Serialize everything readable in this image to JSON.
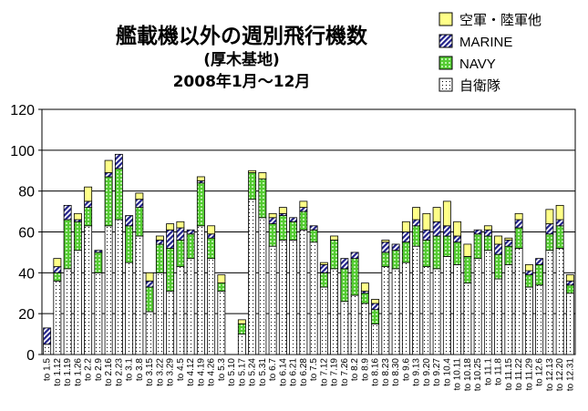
{
  "chart_data": {
    "type": "bar",
    "stacked": true,
    "title": "艦載機以外の週別飛行機数",
    "subtitle_lines": [
      "(厚木基地)",
      "2008年1月～12月"
    ],
    "ylim": [
      0,
      120
    ],
    "yticks": [
      0,
      20,
      40,
      60,
      80,
      100,
      120
    ],
    "grid": true,
    "legend_position": "top-right",
    "categories": [
      "to 1.5",
      "to 1.12",
      "to 1.19",
      "to 1.26",
      "to 2.2",
      "to 2.9",
      "to 2.16",
      "to 2.23",
      "to 3.1",
      "to 3.8",
      "to 3.15",
      "to 3.22",
      "to 3.29",
      "to 4.5",
      "to 4.12",
      "to 4.19",
      "to 4.26",
      "to 5.3",
      "to 5.10",
      "to 5.17",
      "to 5.24",
      "to 5.31",
      "to 6.7",
      "to 6.14",
      "to 6.21",
      "to 6.28",
      "to 7.5",
      "to 7.12",
      "to 7.19",
      "to 7.26",
      "to 8.2",
      "to 8.9",
      "to 8.16",
      "to 8.23",
      "to 8.30",
      "to 9.6",
      "to 9.13",
      "to 9.20",
      "to 9.27",
      "to 10.4",
      "to 10.11",
      "to 10.18",
      "to 10.25",
      "to 11.1",
      "to 11.8",
      "to 11.15",
      "to 11.22",
      "to 11.29",
      "to 12.6",
      "to 12.13",
      "to 12.20",
      "to 12.31"
    ],
    "series": [
      {
        "name": "自衛隊",
        "color": "#ffffff",
        "pattern": "dots",
        "values": [
          5,
          36,
          42,
          51,
          63,
          40,
          63,
          66,
          45,
          58,
          21,
          40,
          31,
          43,
          47,
          63,
          47,
          31,
          0,
          10,
          76,
          67,
          53,
          56,
          56,
          61,
          55,
          33,
          42,
          26,
          29,
          25,
          15,
          43,
          42,
          45,
          53,
          43,
          42,
          48,
          44,
          35,
          47,
          51,
          37,
          44,
          52,
          33,
          34,
          51,
          52,
          30
        ]
      },
      {
        "name": "NAVY",
        "color": "#66dd44",
        "pattern": "grid",
        "values": [
          0,
          4,
          24,
          14,
          9,
          10,
          24,
          25,
          18,
          14,
          12,
          14,
          21,
          13,
          12,
          21,
          10,
          4,
          0,
          5,
          13,
          19,
          11,
          12,
          9,
          9,
          6,
          7,
          14,
          16,
          18,
          5,
          7,
          7,
          9,
          10,
          10,
          13,
          16,
          10,
          11,
          13,
          12,
          7,
          12,
          9,
          10,
          6,
          10,
          8,
          11,
          4
        ]
      },
      {
        "name": "MARINE",
        "color": "#3333aa",
        "pattern": "diagonal",
        "values": [
          8,
          3,
          7,
          1,
          3,
          1,
          2,
          7,
          5,
          4,
          3,
          2,
          9,
          6,
          2,
          1,
          2,
          0,
          0,
          0,
          0,
          0,
          3,
          1,
          2,
          2,
          2,
          4,
          0,
          5,
          3,
          1,
          3,
          5,
          3,
          5,
          3,
          5,
          7,
          5,
          3,
          0,
          2,
          3,
          5,
          3,
          4,
          2,
          3,
          5,
          3,
          2
        ]
      },
      {
        "name": "空軍・陸軍他",
        "color": "#ffff88",
        "pattern": "solid",
        "values": [
          0,
          4,
          0,
          3,
          7,
          0,
          6,
          0,
          0,
          3,
          4,
          2,
          3,
          3,
          0,
          2,
          4,
          4,
          0,
          2,
          1,
          3,
          2,
          3,
          0,
          3,
          0,
          1,
          2,
          0,
          0,
          4,
          2,
          1,
          0,
          5,
          6,
          8,
          7,
          12,
          7,
          6,
          0,
          2,
          4,
          1,
          3,
          3,
          0,
          7,
          7,
          3
        ]
      }
    ]
  }
}
